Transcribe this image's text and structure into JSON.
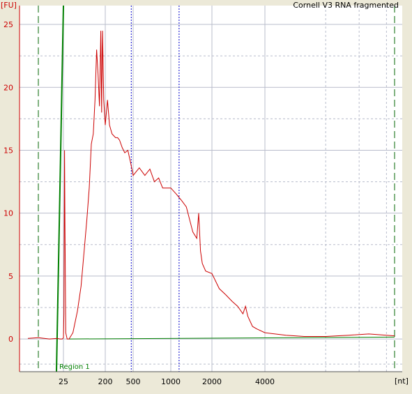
{
  "chart_data": {
    "type": "line",
    "title": "Cornell V3 RNA fragmented",
    "ylabel": "[FU]",
    "xlabel": "[nt]",
    "ylim": [
      -2.6,
      26.5
    ],
    "yticks": [
      0,
      5,
      10,
      15,
      20,
      25
    ],
    "xticks": [
      25,
      200,
      500,
      1000,
      2000,
      4000
    ],
    "grid": true,
    "region_label": "Region 1",
    "colors": {
      "trace": "#cc0000",
      "baseline": "#008000",
      "markers": "#0000cc",
      "grid": "#b8bccb",
      "background": "#ffffff",
      "axis": "#cc0000"
    },
    "series": [
      {
        "values": [
          [
            5,
            0.05
          ],
          [
            10,
            0.1
          ],
          [
            15,
            0.0
          ],
          [
            20,
            0.05
          ],
          [
            22,
            0.0
          ],
          [
            24,
            0.0
          ],
          [
            25,
            0.1
          ],
          [
            25.6,
            2.0
          ],
          [
            26.4,
            15.0
          ],
          [
            27,
            9.0
          ],
          [
            28,
            0.5
          ],
          [
            30,
            0.0
          ],
          [
            33,
            0.0
          ],
          [
            40,
            0.5
          ],
          [
            50,
            2.2
          ],
          [
            60,
            4.2
          ],
          [
            70,
            7.0
          ],
          [
            80,
            9.5
          ],
          [
            90,
            12.0
          ],
          [
            100,
            15.5
          ],
          [
            110,
            16.3
          ],
          [
            120,
            19.0
          ],
          [
            130,
            23.0
          ],
          [
            140,
            21.0
          ],
          [
            150,
            18.5
          ],
          [
            160,
            24.5
          ],
          [
            167,
            18.0
          ],
          [
            175,
            24.5
          ],
          [
            185,
            19.0
          ],
          [
            200,
            17.0
          ],
          [
            215,
            19.0
          ],
          [
            230,
            17.0
          ],
          [
            250,
            16.3
          ],
          [
            280,
            16.0
          ],
          [
            300,
            16.0
          ],
          [
            320,
            15.8
          ],
          [
            350,
            15.2
          ],
          [
            380,
            14.8
          ],
          [
            420,
            15.0
          ],
          [
            460,
            14.0
          ],
          [
            500,
            13.0
          ],
          [
            560,
            13.6
          ],
          [
            620,
            13.0
          ],
          [
            680,
            13.5
          ],
          [
            740,
            12.5
          ],
          [
            800,
            12.8
          ],
          [
            860,
            12.0
          ],
          [
            920,
            12.0
          ],
          [
            1000,
            12.0
          ],
          [
            1100,
            11.5
          ],
          [
            1200,
            11.0
          ],
          [
            1300,
            10.5
          ],
          [
            1450,
            8.5
          ],
          [
            1550,
            8.0
          ],
          [
            1600,
            10.0
          ],
          [
            1650,
            7.0
          ],
          [
            1700,
            6.0
          ],
          [
            1800,
            5.4
          ],
          [
            2000,
            5.2
          ],
          [
            2200,
            4.0
          ],
          [
            2400,
            3.5
          ],
          [
            2600,
            3.0
          ],
          [
            2800,
            2.6
          ],
          [
            3000,
            2.0
          ],
          [
            3100,
            2.6
          ],
          [
            3200,
            1.8
          ],
          [
            3400,
            1.0
          ],
          [
            3600,
            0.8
          ],
          [
            4000,
            0.5
          ],
          [
            4600,
            0.3
          ],
          [
            5200,
            0.2
          ],
          [
            6000,
            0.2
          ],
          [
            7000,
            0.3
          ],
          [
            8000,
            0.4
          ],
          [
            9500,
            0.25
          ]
        ]
      }
    ],
    "markers": {
      "region_start": 25,
      "green_dashed": [
        10,
        9500
      ],
      "blue_dotted": [
        470,
        1150
      ]
    }
  }
}
